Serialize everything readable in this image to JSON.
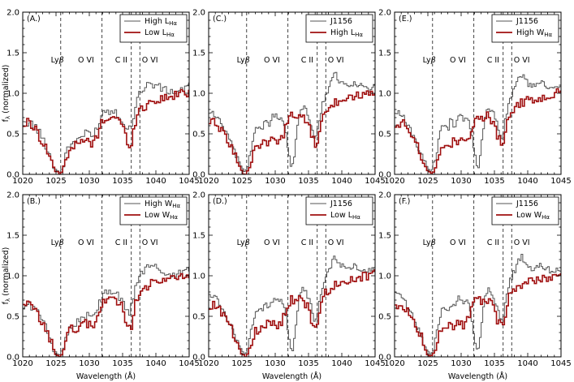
{
  "chart_data": [
    {
      "panel": "(A.)",
      "col": 0,
      "row": 0,
      "type": "line",
      "series": [
        {
          "name": "High L",
          "sub": "Hα",
          "color": "#555555",
          "kind": "grey"
        },
        {
          "name": "Low L",
          "sub": "Hα",
          "color": "#a01010",
          "kind": "red"
        }
      ],
      "xlabel": "",
      "ylabel": "f_λ (normalized)"
    },
    {
      "panel": "(B.)",
      "col": 0,
      "row": 1,
      "type": "line",
      "series": [
        {
          "name": "High W",
          "sub": "Hα",
          "color": "#555555",
          "kind": "grey"
        },
        {
          "name": "Low W",
          "sub": "Hα",
          "color": "#a01010",
          "kind": "red"
        }
      ],
      "xlabel": "Wavelength (Å)",
      "ylabel": "f_λ (normalized)"
    },
    {
      "panel": "(C.)",
      "col": 1,
      "row": 0,
      "type": "line",
      "series": [
        {
          "name": "J1156",
          "sub": "",
          "color": "#555555",
          "kind": "j"
        },
        {
          "name": "High L",
          "sub": "Hα",
          "color": "#a01010",
          "kind": "red"
        }
      ],
      "xlabel": "",
      "ylabel": ""
    },
    {
      "panel": "(D.)",
      "col": 1,
      "row": 1,
      "type": "line",
      "series": [
        {
          "name": "J1156",
          "sub": "",
          "color": "#555555",
          "kind": "j"
        },
        {
          "name": "Low L",
          "sub": "Hα",
          "color": "#a01010",
          "kind": "red"
        }
      ],
      "xlabel": "Wavelength (Å)",
      "ylabel": ""
    },
    {
      "panel": "(E.)",
      "col": 2,
      "row": 0,
      "type": "line",
      "series": [
        {
          "name": "J1156",
          "sub": "",
          "color": "#555555",
          "kind": "j"
        },
        {
          "name": "High W",
          "sub": "Hα",
          "color": "#a01010",
          "kind": "red"
        }
      ],
      "xlabel": "",
      "ylabel": ""
    },
    {
      "panel": "(F.)",
      "col": 2,
      "row": 1,
      "type": "line",
      "series": [
        {
          "name": "J1156",
          "sub": "",
          "color": "#555555",
          "kind": "j"
        },
        {
          "name": "Low W",
          "sub": "Hα",
          "color": "#a01010",
          "kind": "red"
        }
      ],
      "xlabel": "Wavelength (Å)",
      "ylabel": ""
    }
  ],
  "axes": {
    "xlim": [
      1020,
      1045
    ],
    "ylim": [
      0.0,
      2.0
    ],
    "xticks": [
      1020,
      1025,
      1030,
      1035,
      1040,
      1045
    ],
    "yticks": [
      "0.0",
      "0.5",
      "1.0",
      "1.5",
      "2.0"
    ]
  },
  "lines": [
    {
      "wavelength": 1025.7,
      "label": "Lyβ"
    },
    {
      "wavelength": 1031.9,
      "label": "O VI"
    },
    {
      "wavelength": 1036.3,
      "label": "C II"
    },
    {
      "wavelength": 1037.6,
      "label": "O VI"
    }
  ],
  "line_annotations": [
    {
      "label": "Lyβ",
      "x": 1025.2
    },
    {
      "label": "O VI",
      "x": 1029.5
    },
    {
      "label": "C II",
      "x": 1034.8
    },
    {
      "label": "O VI",
      "x": 1039.1
    }
  ],
  "profiles": {
    "red": [
      [
        1020,
        0.6
      ],
      [
        1021,
        0.65
      ],
      [
        1022,
        0.55
      ],
      [
        1023,
        0.4
      ],
      [
        1024,
        0.25
      ],
      [
        1024.8,
        0.05
      ],
      [
        1025.5,
        0.0
      ],
      [
        1026,
        0.05
      ],
      [
        1026.5,
        0.2
      ],
      [
        1027,
        0.32
      ],
      [
        1028,
        0.36
      ],
      [
        1029,
        0.4
      ],
      [
        1030,
        0.42
      ],
      [
        1030.5,
        0.35
      ],
      [
        1031,
        0.45
      ],
      [
        1032,
        0.65
      ],
      [
        1032.5,
        0.72
      ],
      [
        1033,
        0.68
      ],
      [
        1034,
        0.72
      ],
      [
        1034.5,
        0.65
      ],
      [
        1035,
        0.6
      ],
      [
        1035.5,
        0.45
      ],
      [
        1036,
        0.38
      ],
      [
        1036.4,
        0.4
      ],
      [
        1036.8,
        0.6
      ],
      [
        1037.2,
        0.75
      ],
      [
        1038,
        0.82
      ],
      [
        1039,
        0.88
      ],
      [
        1040,
        0.92
      ],
      [
        1041,
        0.93
      ],
      [
        1042,
        0.95
      ],
      [
        1043,
        0.98
      ],
      [
        1044,
        1.0
      ],
      [
        1045,
        1.02
      ]
    ],
    "grey": [
      [
        1020,
        0.6
      ],
      [
        1021,
        0.65
      ],
      [
        1022,
        0.58
      ],
      [
        1023,
        0.45
      ],
      [
        1024,
        0.25
      ],
      [
        1024.8,
        0.08
      ],
      [
        1025.5,
        0.02
      ],
      [
        1026,
        0.08
      ],
      [
        1026.5,
        0.25
      ],
      [
        1027,
        0.35
      ],
      [
        1028,
        0.42
      ],
      [
        1029,
        0.48
      ],
      [
        1030,
        0.52
      ],
      [
        1030.5,
        0.45
      ],
      [
        1031,
        0.55
      ],
      [
        1032,
        0.75
      ],
      [
        1032.5,
        0.8
      ],
      [
        1033,
        0.78
      ],
      [
        1034,
        0.78
      ],
      [
        1034.5,
        0.72
      ],
      [
        1035,
        0.68
      ],
      [
        1035.5,
        0.55
      ],
      [
        1036,
        0.55
      ],
      [
        1036.4,
        0.62
      ],
      [
        1036.8,
        0.8
      ],
      [
        1037.2,
        0.95
      ],
      [
        1038,
        1.05
      ],
      [
        1039,
        1.12
      ],
      [
        1040,
        1.1
      ],
      [
        1041,
        1.05
      ],
      [
        1042,
        1.02
      ],
      [
        1043,
        1.02
      ],
      [
        1044,
        1.05
      ],
      [
        1045,
        1.08
      ]
    ],
    "j": [
      [
        1020,
        0.75
      ],
      [
        1020.5,
        0.78
      ],
      [
        1021,
        0.72
      ],
      [
        1021.5,
        0.68
      ],
      [
        1022,
        0.6
      ],
      [
        1023,
        0.45
      ],
      [
        1024,
        0.25
      ],
      [
        1024.8,
        0.1
      ],
      [
        1025.5,
        0.03
      ],
      [
        1026,
        0.15
      ],
      [
        1026.5,
        0.35
      ],
      [
        1027,
        0.55
      ],
      [
        1027.5,
        0.62
      ],
      [
        1028,
        0.55
      ],
      [
        1028.5,
        0.68
      ],
      [
        1029,
        0.6
      ],
      [
        1029.5,
        0.7
      ],
      [
        1030,
        0.75
      ],
      [
        1030.5,
        0.65
      ],
      [
        1031,
        0.72
      ],
      [
        1031.5,
        0.55
      ],
      [
        1032,
        0.25
      ],
      [
        1032.5,
        0.05
      ],
      [
        1033,
        0.3
      ],
      [
        1033.5,
        0.7
      ],
      [
        1034,
        0.85
      ],
      [
        1034.5,
        0.8
      ],
      [
        1035,
        0.72
      ],
      [
        1035.5,
        0.6
      ],
      [
        1036,
        0.4
      ],
      [
        1036.4,
        0.55
      ],
      [
        1036.8,
        0.75
      ],
      [
        1037.2,
        0.9
      ],
      [
        1038,
        1.05
      ],
      [
        1038.5,
        1.15
      ],
      [
        1039,
        1.25
      ],
      [
        1039.5,
        1.18
      ],
      [
        1040,
        1.12
      ],
      [
        1041,
        1.08
      ],
      [
        1042,
        1.12
      ],
      [
        1043,
        1.08
      ],
      [
        1044,
        1.05
      ],
      [
        1045,
        1.08
      ]
    ]
  }
}
